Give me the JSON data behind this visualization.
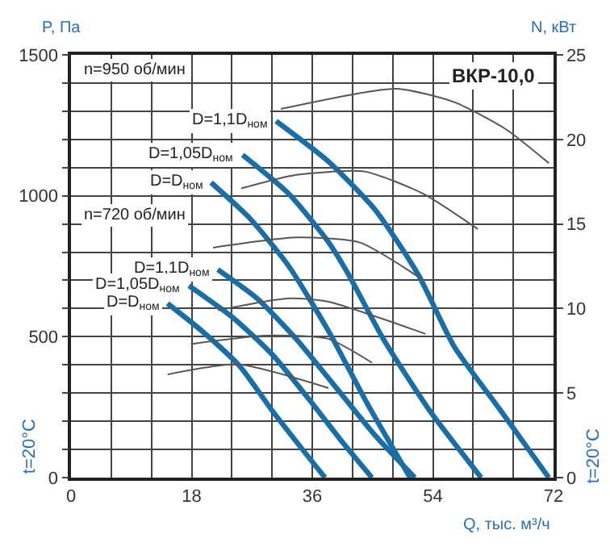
{
  "chart_data": {
    "type": "line",
    "title": "ВКР-10,0",
    "xlabel": "Q, тыс. м³/ч",
    "ylabel": "P, Па",
    "y2label": "N, кВт",
    "annotations": [
      "n=950 об/мин",
      "n=720 об/мин",
      "t=20°C",
      "t=20°C"
    ],
    "xlim": [
      0,
      72
    ],
    "ylim": [
      0,
      1500
    ],
    "y2lim": [
      0,
      25
    ],
    "xticks": [
      0,
      {
        "value": 6,
        "label": null
      },
      {
        "value": 12,
        "label": null
      },
      18,
      {
        "value": 24,
        "label": null
      },
      {
        "value": 30,
        "label": null
      },
      36,
      {
        "value": 42,
        "label": null
      },
      {
        "value": 48,
        "label": null
      },
      54,
      {
        "value": 60,
        "label": null
      },
      {
        "value": 66,
        "label": null
      },
      72
    ],
    "yticks": [
      0,
      {
        "value": 100,
        "label": null
      },
      {
        "value": 200,
        "label": null
      },
      {
        "value": 300,
        "label": null
      },
      {
        "value": 400,
        "label": null
      },
      500,
      {
        "value": 600,
        "label": null
      },
      {
        "value": 700,
        "label": null
      },
      {
        "value": 800,
        "label": null
      },
      {
        "value": 900,
        "label": null
      },
      1000,
      {
        "value": 1100,
        "label": null
      },
      {
        "value": 1200,
        "label": null
      },
      {
        "value": 1300,
        "label": null
      },
      {
        "value": 1400,
        "label": null
      },
      1500
    ],
    "y2ticks": [
      0,
      5,
      10,
      15,
      20,
      25
    ],
    "grid": true,
    "marker": "none",
    "line_style": "solid",
    "series": [
      {
        "name": "D=1,1D$_{ном}$",
        "color": "#1a6ea8",
        "x": [
          30.6,
          38.4,
          45.4,
          51.8,
          57.2,
          64.2,
          71.3
        ],
        "values": [
          1265,
          1122,
          950,
          721,
          464,
          235,
          0
        ]
      },
      {
        "name": "D=1,05D$_{ном}$",
        "color": "#1a6ea8",
        "x": [
          25.6,
          32.5,
          38.4,
          41.4,
          46.6,
          53.6,
          61.2
        ],
        "values": [
          1145,
          1007,
          836,
          721,
          492,
          235,
          0
        ]
      },
      {
        "name": "D=D$_{ном}$",
        "color": "#1a6ea8",
        "x": [
          20.9,
          26.6,
          32.5,
          38.4,
          44.2,
          50.6
        ],
        "values": [
          1047,
          922,
          750,
          521,
          263,
          0
        ]
      },
      {
        "name": "D=1,1D$_{ном}$",
        "color": "#1a6ea8",
        "x": [
          21.9,
          27.8,
          33.6,
          39.5,
          45.4,
          51.3
        ],
        "values": [
          738,
          635,
          492,
          321,
          149,
          0
        ]
      },
      {
        "name": "D=1,05D$_{ном}$",
        "color": "#1a6ea8",
        "x": [
          17.6,
          24.2,
          30.1,
          36.0,
          40.7,
          44.9
        ],
        "values": [
          681,
          567,
          435,
          263,
          120,
          0
        ]
      },
      {
        "name": "D=D$_{ном}$",
        "color": "#1a6ea8",
        "x": [
          14.4,
          19.5,
          25.2,
          30.1,
          34.8,
          37.9
        ],
        "values": [
          618,
          521,
          395,
          235,
          92,
          0
        ]
      },
      {
        "axis": "y2",
        "color": "#555555",
        "x": [
          31.3,
          48.5,
          57.2,
          64.9,
          71.3
        ],
        "values": [
          21.8,
          23.0,
          22.2,
          20.6,
          18.6
        ]
      },
      {
        "axis": "y2",
        "color": "#555555",
        "x": [
          25.4,
          33.6,
          43.8,
          52.5,
          60.7
        ],
        "values": [
          17.1,
          17.9,
          18.1,
          16.8,
          14.7
        ]
      },
      {
        "axis": "y2",
        "color": "#555555",
        "x": [
          21.2,
          33.6,
          43.1,
          52.5
        ],
        "values": [
          13.6,
          14.2,
          13.9,
          11.7
        ]
      },
      {
        "axis": "y2",
        "color": "#555555",
        "x": [
          21.9,
          32.5,
          38.4,
          52.9
        ],
        "values": [
          9.9,
          10.6,
          10.4,
          8.5
        ]
      },
      {
        "axis": "y2",
        "color": "#555555",
        "x": [
          17.9,
          28.9,
          38.4,
          44.9
        ],
        "values": [
          7.9,
          8.4,
          8.2,
          6.8
        ]
      },
      {
        "axis": "y2",
        "color": "#555555",
        "x": [
          14.4,
          24.9,
          38.4
        ],
        "values": [
          6.1,
          6.7,
          5.3
        ]
      }
    ]
  }
}
